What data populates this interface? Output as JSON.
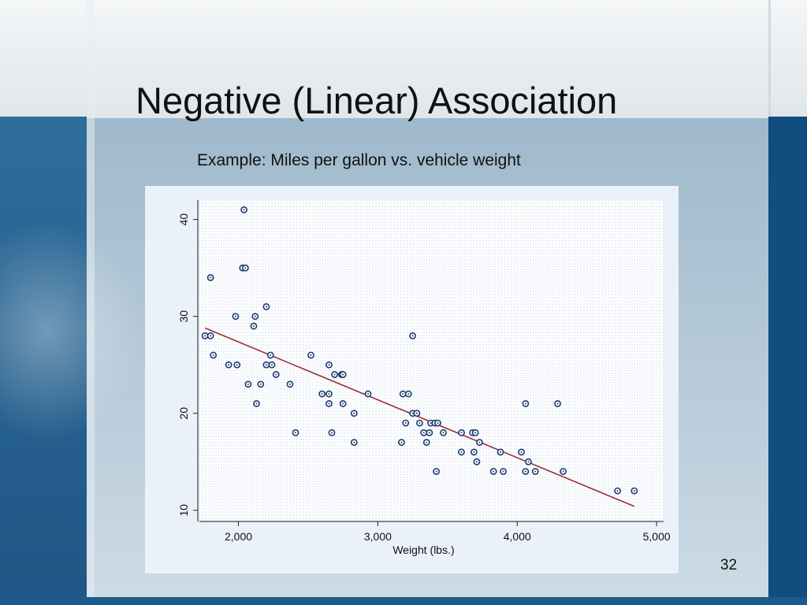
{
  "slide": {
    "title": "Negative (Linear) Association",
    "subtitle": "Example: Miles per gallon vs. vehicle weight",
    "page_number": "32"
  },
  "colors": {
    "point_stroke": "#1d3a6e",
    "fit_line": "#9b2d35",
    "plot_background": "#ffffff",
    "grid": "#a9bfd9",
    "panel": "#eaf1f8",
    "slide_dark_band": "#1c5a8c"
  },
  "chart_data": {
    "type": "scatter",
    "title": "",
    "xlabel": "Weight (lbs.)",
    "ylabel": "",
    "xlim": [
      1720,
      5050
    ],
    "ylim": [
      9,
      42
    ],
    "xticks": [
      2000,
      3000,
      4000,
      5000
    ],
    "xtick_labels": [
      "2,000",
      "3,000",
      "4,000",
      "5,000"
    ],
    "yticks": [
      10,
      20,
      30,
      40
    ],
    "ytick_labels": [
      "10",
      "20",
      "30",
      "40"
    ],
    "grid": true,
    "legend": "none",
    "points": [
      [
        2040,
        41
      ],
      [
        1800,
        34
      ],
      [
        2030,
        35
      ],
      [
        2050,
        35
      ],
      [
        1980,
        30
      ],
      [
        2200,
        31
      ],
      [
        2120,
        30
      ],
      [
        2110,
        29
      ],
      [
        1760,
        28
      ],
      [
        1800,
        28
      ],
      [
        3250,
        28
      ],
      [
        1820,
        26
      ],
      [
        2230,
        26
      ],
      [
        2520,
        26
      ],
      [
        1930,
        25
      ],
      [
        1990,
        25
      ],
      [
        2200,
        25
      ],
      [
        2240,
        25
      ],
      [
        2650,
        25
      ],
      [
        2270,
        24
      ],
      [
        2690,
        24
      ],
      [
        2740,
        24
      ],
      [
        2750,
        24
      ],
      [
        2070,
        23
      ],
      [
        2160,
        23
      ],
      [
        2370,
        23
      ],
      [
        2600,
        22
      ],
      [
        2650,
        22
      ],
      [
        2930,
        22
      ],
      [
        3180,
        22
      ],
      [
        3220,
        22
      ],
      [
        2130,
        21
      ],
      [
        2650,
        21
      ],
      [
        2750,
        21
      ],
      [
        4060,
        21
      ],
      [
        4290,
        21
      ],
      [
        2830,
        20
      ],
      [
        3250,
        20
      ],
      [
        3280,
        20
      ],
      [
        3200,
        19
      ],
      [
        3300,
        19
      ],
      [
        3380,
        19
      ],
      [
        3410,
        19
      ],
      [
        3430,
        19
      ],
      [
        2410,
        18
      ],
      [
        2670,
        18
      ],
      [
        3330,
        18
      ],
      [
        3370,
        18
      ],
      [
        3470,
        18
      ],
      [
        3600,
        18
      ],
      [
        3680,
        18
      ],
      [
        3700,
        18
      ],
      [
        2830,
        17
      ],
      [
        3170,
        17
      ],
      [
        3350,
        17
      ],
      [
        3730,
        17
      ],
      [
        3600,
        16
      ],
      [
        3690,
        16
      ],
      [
        3880,
        16
      ],
      [
        4030,
        16
      ],
      [
        3710,
        15
      ],
      [
        4080,
        15
      ],
      [
        3420,
        14
      ],
      [
        3830,
        14
      ],
      [
        3900,
        14
      ],
      [
        4060,
        14
      ],
      [
        4130,
        14
      ],
      [
        4330,
        14
      ],
      [
        4720,
        12
      ],
      [
        4840,
        12
      ]
    ],
    "fit_line": {
      "x": [
        1760,
        4840
      ],
      "y": [
        28.8,
        10.4
      ]
    }
  }
}
